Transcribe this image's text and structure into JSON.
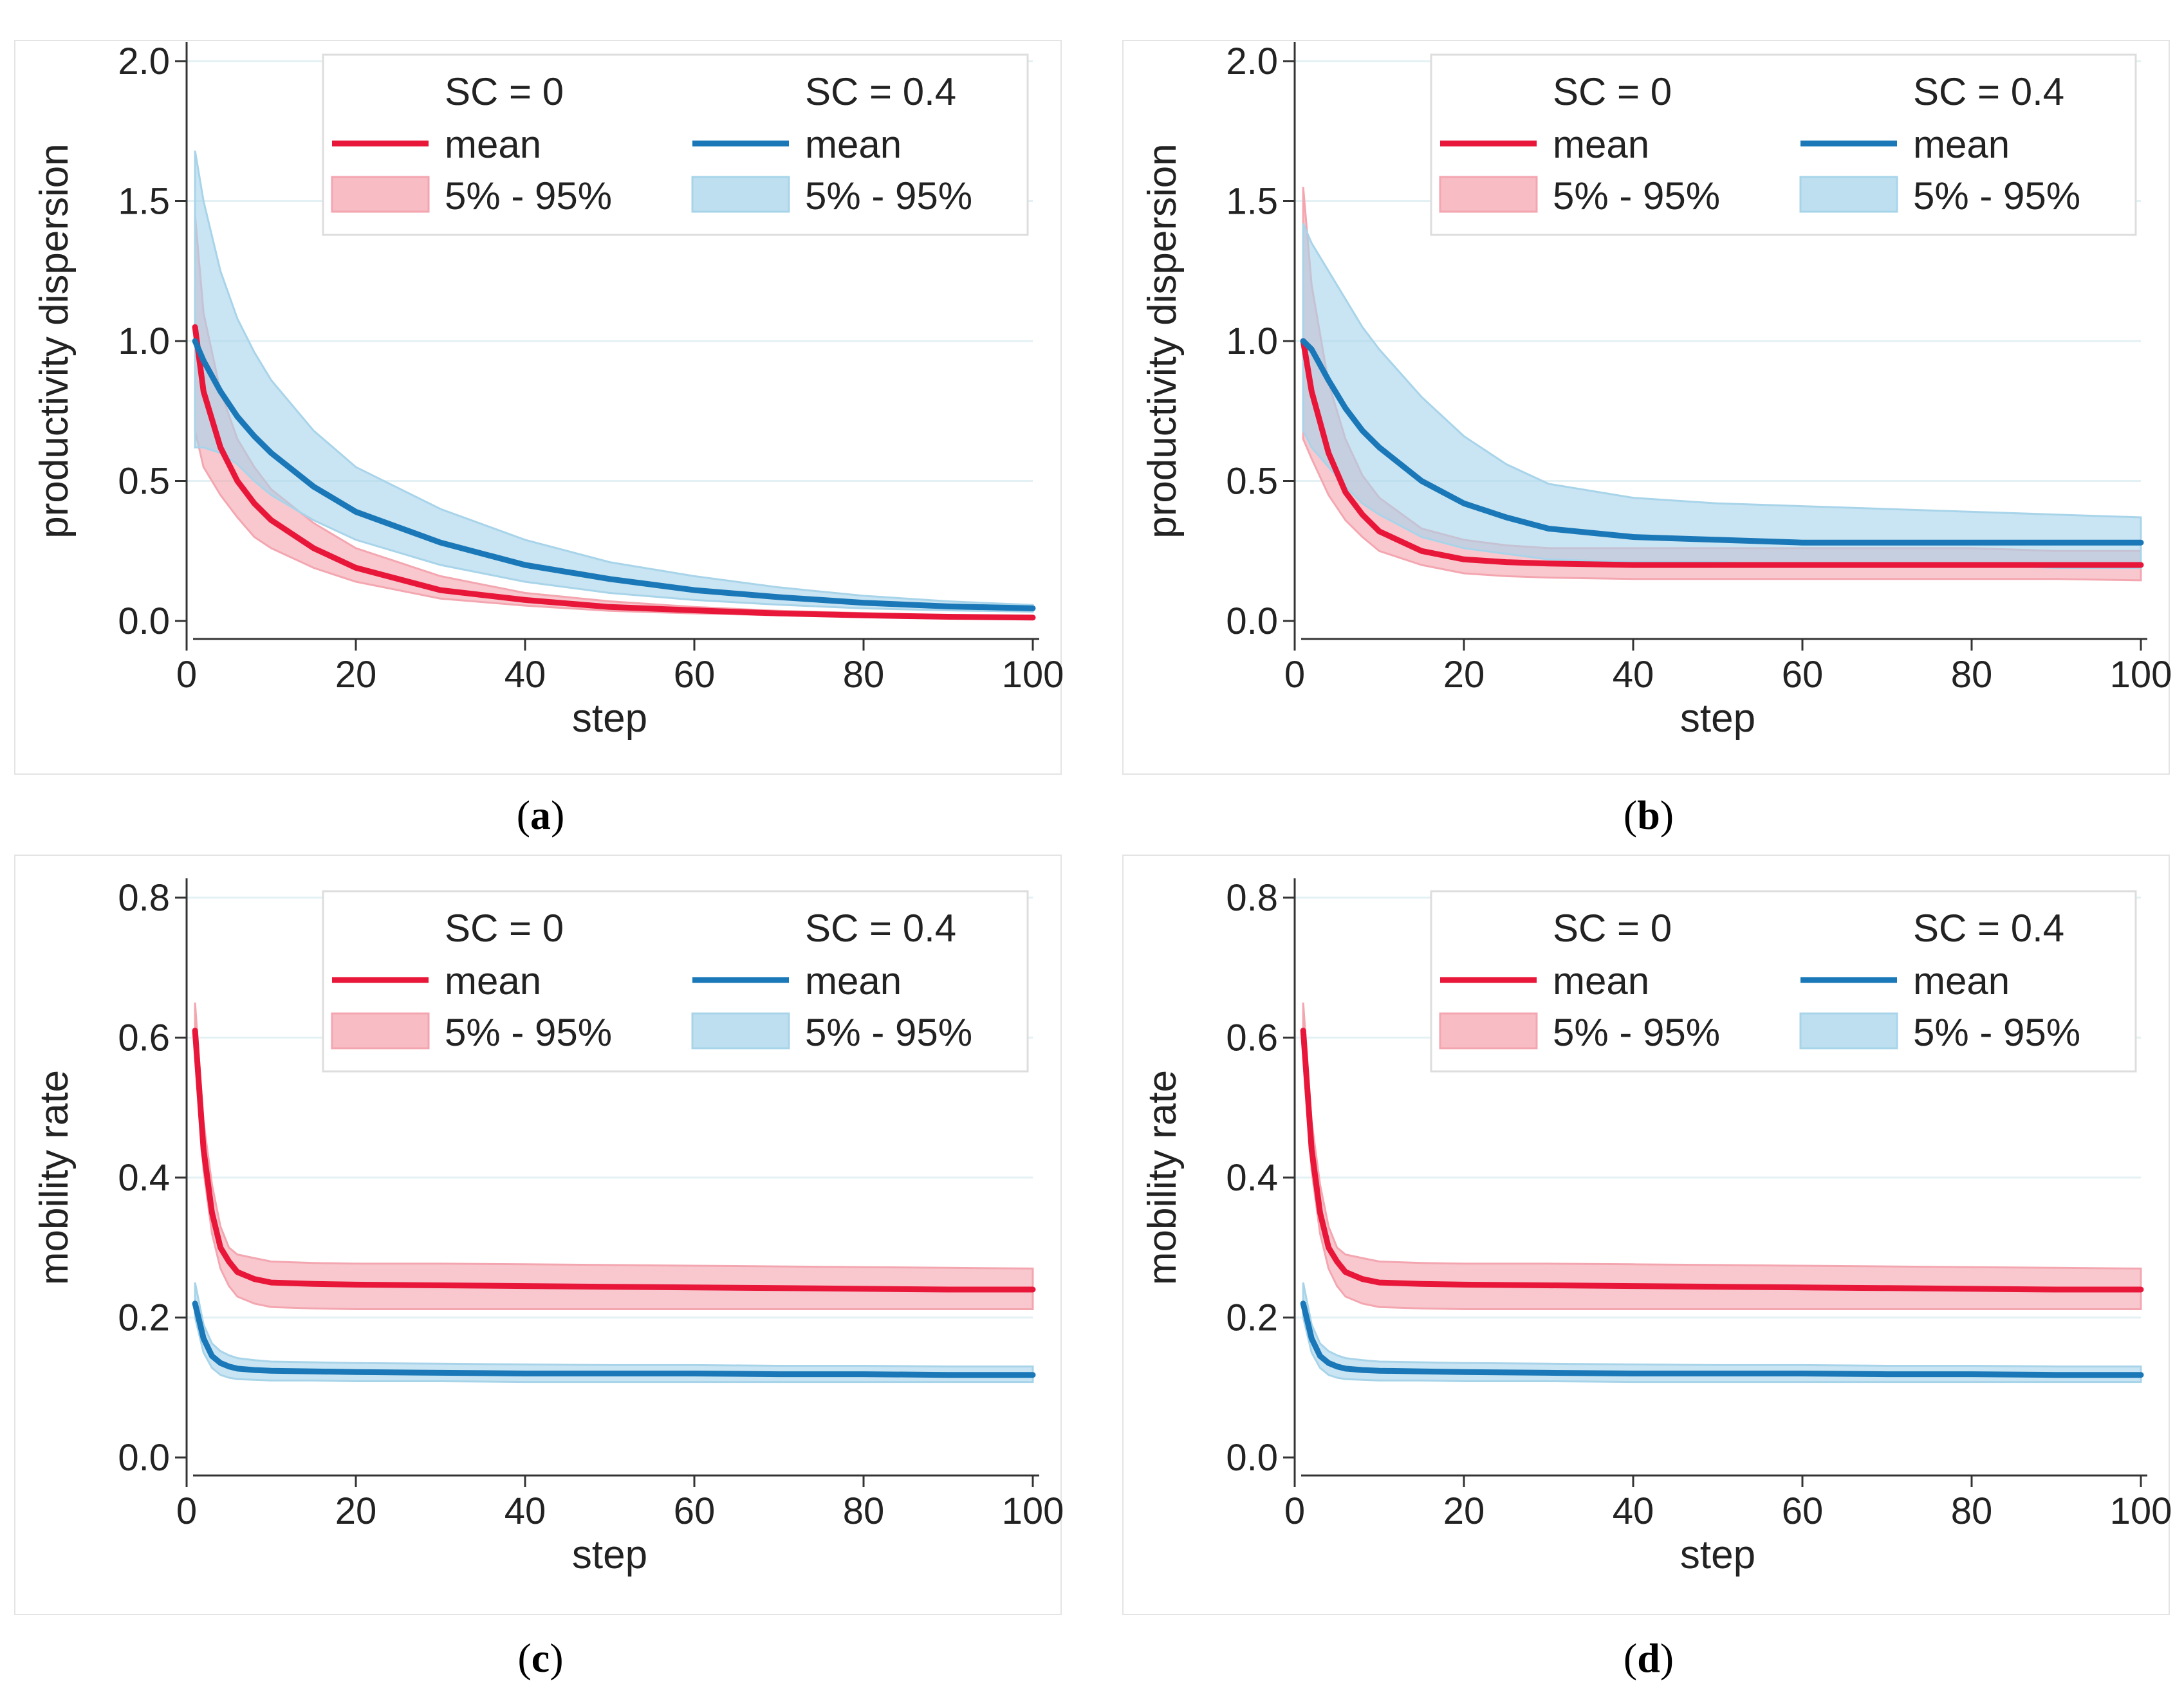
{
  "panels": [
    {
      "letter": "a"
    },
    {
      "letter": "b"
    },
    {
      "letter": "c"
    },
    {
      "letter": "d"
    }
  ],
  "chart_data": [
    {
      "id": "a",
      "type": "line",
      "xlabel": "step",
      "ylabel": "productivity dispersion",
      "xlim": [
        0,
        100
      ],
      "ylim": [
        0,
        2.0
      ],
      "xticks": [
        "0",
        "20",
        "40",
        "60",
        "80",
        "100"
      ],
      "yticks": [
        "0.0",
        "0.5",
        "1.0",
        "1.5",
        "2.0"
      ],
      "legend": {
        "placement": "top-right",
        "group_titles": [
          "SC = 0",
          "SC = 0.4"
        ],
        "mean_label": "mean",
        "band_label": "5% - 95%"
      },
      "series": [
        {
          "name": "SC = 0",
          "color": "#e8173a",
          "band_color": "#f4a6b0",
          "x": [
            1,
            2,
            4,
            6,
            8,
            10,
            15,
            20,
            30,
            40,
            50,
            60,
            70,
            80,
            90,
            100
          ],
          "mean": [
            1.05,
            0.82,
            0.62,
            0.5,
            0.42,
            0.36,
            0.26,
            0.19,
            0.11,
            0.075,
            0.05,
            0.038,
            0.027,
            0.02,
            0.015,
            0.012
          ],
          "lower": [
            0.68,
            0.55,
            0.45,
            0.37,
            0.3,
            0.26,
            0.19,
            0.14,
            0.08,
            0.055,
            0.036,
            0.027,
            0.02,
            0.015,
            0.012,
            0.01
          ],
          "upper": [
            1.45,
            1.1,
            0.82,
            0.65,
            0.55,
            0.47,
            0.35,
            0.26,
            0.16,
            0.1,
            0.07,
            0.05,
            0.036,
            0.028,
            0.02,
            0.016
          ]
        },
        {
          "name": "SC = 0.4",
          "color": "#1a78b8",
          "band_color": "#a8d4ea",
          "x": [
            1,
            2,
            4,
            6,
            8,
            10,
            15,
            20,
            30,
            40,
            50,
            60,
            70,
            80,
            90,
            100
          ],
          "mean": [
            1.0,
            0.93,
            0.82,
            0.73,
            0.66,
            0.6,
            0.48,
            0.39,
            0.28,
            0.2,
            0.15,
            0.11,
            0.085,
            0.065,
            0.052,
            0.045
          ],
          "lower": [
            0.62,
            0.62,
            0.6,
            0.56,
            0.5,
            0.45,
            0.36,
            0.29,
            0.2,
            0.14,
            0.1,
            0.075,
            0.058,
            0.045,
            0.038,
            0.033
          ],
          "upper": [
            1.68,
            1.5,
            1.25,
            1.08,
            0.96,
            0.86,
            0.68,
            0.55,
            0.4,
            0.29,
            0.21,
            0.16,
            0.12,
            0.09,
            0.07,
            0.057
          ]
        }
      ]
    },
    {
      "id": "b",
      "type": "line",
      "xlabel": "step",
      "ylabel": "productivity dispersion",
      "xlim": [
        0,
        100
      ],
      "ylim": [
        0,
        2.0
      ],
      "xticks": [
        "0",
        "20",
        "40",
        "60",
        "80",
        "100"
      ],
      "yticks": [
        "0.0",
        "0.5",
        "1.0",
        "1.5",
        "2.0"
      ],
      "legend": {
        "placement": "top-right",
        "group_titles": [
          "SC = 0",
          "SC = 0.4"
        ],
        "mean_label": "mean",
        "band_label": "5% - 95%"
      },
      "series": [
        {
          "name": "SC = 0",
          "color": "#e8173a",
          "band_color": "#f4a6b0",
          "x": [
            1,
            2,
            4,
            6,
            8,
            10,
            15,
            20,
            25,
            30,
            40,
            50,
            60,
            70,
            80,
            90,
            100
          ],
          "mean": [
            1.0,
            0.82,
            0.6,
            0.46,
            0.38,
            0.32,
            0.25,
            0.22,
            0.21,
            0.205,
            0.2,
            0.2,
            0.2,
            0.2,
            0.2,
            0.2,
            0.2
          ],
          "lower": [
            0.65,
            0.58,
            0.45,
            0.36,
            0.3,
            0.25,
            0.2,
            0.17,
            0.16,
            0.155,
            0.15,
            0.15,
            0.15,
            0.15,
            0.15,
            0.15,
            0.145
          ],
          "upper": [
            1.55,
            1.2,
            0.85,
            0.65,
            0.52,
            0.44,
            0.33,
            0.29,
            0.27,
            0.26,
            0.26,
            0.26,
            0.26,
            0.26,
            0.26,
            0.25,
            0.25
          ]
        },
        {
          "name": "SC = 0.4",
          "color": "#1a78b8",
          "band_color": "#a8d4ea",
          "x": [
            1,
            2,
            4,
            6,
            8,
            10,
            15,
            20,
            25,
            30,
            40,
            50,
            60,
            70,
            80,
            90,
            100
          ],
          "mean": [
            1.0,
            0.97,
            0.86,
            0.76,
            0.68,
            0.62,
            0.5,
            0.42,
            0.37,
            0.33,
            0.3,
            0.29,
            0.28,
            0.28,
            0.28,
            0.28,
            0.28
          ],
          "lower": [
            0.68,
            0.62,
            0.55,
            0.48,
            0.42,
            0.38,
            0.3,
            0.26,
            0.24,
            0.22,
            0.21,
            0.21,
            0.2,
            0.2,
            0.2,
            0.19,
            0.19
          ],
          "upper": [
            1.42,
            1.35,
            1.25,
            1.15,
            1.05,
            0.97,
            0.8,
            0.66,
            0.56,
            0.49,
            0.44,
            0.42,
            0.41,
            0.4,
            0.39,
            0.38,
            0.37
          ]
        }
      ]
    },
    {
      "id": "c",
      "type": "line",
      "xlabel": "step",
      "ylabel": "mobility rate",
      "xlim": [
        0,
        100
      ],
      "ylim": [
        0,
        0.8
      ],
      "xticks": [
        "0",
        "20",
        "40",
        "60",
        "80",
        "100"
      ],
      "yticks": [
        "0.0",
        "0.2",
        "0.4",
        "0.6",
        "0.8"
      ],
      "legend": {
        "placement": "top-right",
        "group_titles": [
          "SC = 0",
          "SC = 0.4"
        ],
        "mean_label": "mean",
        "band_label": "5% - 95%"
      },
      "series": [
        {
          "name": "SC = 0",
          "color": "#e8173a",
          "band_color": "#f4a6b0",
          "x": [
            1,
            2,
            3,
            4,
            5,
            6,
            8,
            10,
            15,
            20,
            30,
            40,
            50,
            60,
            70,
            80,
            90,
            100
          ],
          "mean": [
            0.61,
            0.44,
            0.35,
            0.3,
            0.28,
            0.265,
            0.255,
            0.25,
            0.248,
            0.247,
            0.246,
            0.245,
            0.244,
            0.243,
            0.242,
            0.241,
            0.24,
            0.24
          ],
          "lower": [
            0.58,
            0.41,
            0.32,
            0.27,
            0.245,
            0.23,
            0.22,
            0.215,
            0.213,
            0.212,
            0.212,
            0.212,
            0.212,
            0.212,
            0.212,
            0.212,
            0.212,
            0.212
          ],
          "upper": [
            0.65,
            0.48,
            0.39,
            0.33,
            0.3,
            0.29,
            0.285,
            0.28,
            0.278,
            0.277,
            0.277,
            0.276,
            0.275,
            0.274,
            0.273,
            0.272,
            0.271,
            0.27
          ]
        },
        {
          "name": "SC = 0.4",
          "color": "#1a78b8",
          "band_color": "#a8d4ea",
          "x": [
            1,
            2,
            3,
            4,
            5,
            6,
            8,
            10,
            15,
            20,
            30,
            40,
            50,
            60,
            70,
            80,
            90,
            100
          ],
          "mean": [
            0.22,
            0.17,
            0.145,
            0.135,
            0.13,
            0.127,
            0.125,
            0.124,
            0.123,
            0.122,
            0.121,
            0.12,
            0.12,
            0.12,
            0.119,
            0.119,
            0.118,
            0.118
          ],
          "lower": [
            0.2,
            0.15,
            0.128,
            0.118,
            0.114,
            0.112,
            0.111,
            0.11,
            0.11,
            0.109,
            0.109,
            0.108,
            0.108,
            0.108,
            0.108,
            0.108,
            0.108,
            0.108
          ],
          "upper": [
            0.25,
            0.19,
            0.163,
            0.152,
            0.146,
            0.142,
            0.139,
            0.137,
            0.136,
            0.135,
            0.134,
            0.133,
            0.132,
            0.132,
            0.131,
            0.131,
            0.13,
            0.13
          ]
        }
      ]
    },
    {
      "id": "d",
      "type": "line",
      "xlabel": "step",
      "ylabel": "mobility rate",
      "xlim": [
        0,
        100
      ],
      "ylim": [
        0,
        0.8
      ],
      "xticks": [
        "0",
        "20",
        "40",
        "60",
        "80",
        "100"
      ],
      "yticks": [
        "0.0",
        "0.2",
        "0.4",
        "0.6",
        "0.8"
      ],
      "legend": {
        "placement": "top-right",
        "group_titles": [
          "SC = 0",
          "SC = 0.4"
        ],
        "mean_label": "mean",
        "band_label": "5% - 95%"
      },
      "series": [
        {
          "name": "SC = 0",
          "color": "#e8173a",
          "band_color": "#f4a6b0",
          "x": [
            1,
            2,
            3,
            4,
            5,
            6,
            8,
            10,
            15,
            20,
            30,
            40,
            50,
            60,
            70,
            80,
            90,
            100
          ],
          "mean": [
            0.61,
            0.44,
            0.35,
            0.3,
            0.28,
            0.265,
            0.255,
            0.25,
            0.248,
            0.247,
            0.246,
            0.245,
            0.244,
            0.243,
            0.242,
            0.241,
            0.24,
            0.24
          ],
          "lower": [
            0.58,
            0.41,
            0.32,
            0.27,
            0.245,
            0.23,
            0.22,
            0.215,
            0.213,
            0.212,
            0.212,
            0.212,
            0.212,
            0.212,
            0.212,
            0.212,
            0.212,
            0.212
          ],
          "upper": [
            0.65,
            0.48,
            0.39,
            0.33,
            0.3,
            0.29,
            0.285,
            0.28,
            0.278,
            0.277,
            0.277,
            0.276,
            0.275,
            0.274,
            0.273,
            0.272,
            0.271,
            0.27
          ]
        },
        {
          "name": "SC = 0.4",
          "color": "#1a78b8",
          "band_color": "#a8d4ea",
          "x": [
            1,
            2,
            3,
            4,
            5,
            6,
            8,
            10,
            15,
            20,
            30,
            40,
            50,
            60,
            70,
            80,
            90,
            100
          ],
          "mean": [
            0.22,
            0.17,
            0.145,
            0.135,
            0.13,
            0.127,
            0.125,
            0.124,
            0.123,
            0.122,
            0.121,
            0.12,
            0.12,
            0.12,
            0.119,
            0.119,
            0.118,
            0.118
          ],
          "lower": [
            0.2,
            0.15,
            0.128,
            0.118,
            0.114,
            0.112,
            0.111,
            0.11,
            0.11,
            0.109,
            0.109,
            0.108,
            0.108,
            0.108,
            0.108,
            0.108,
            0.108,
            0.108
          ],
          "upper": [
            0.25,
            0.19,
            0.163,
            0.152,
            0.146,
            0.142,
            0.139,
            0.137,
            0.136,
            0.135,
            0.134,
            0.133,
            0.132,
            0.132,
            0.131,
            0.131,
            0.13,
            0.13
          ]
        }
      ]
    }
  ]
}
